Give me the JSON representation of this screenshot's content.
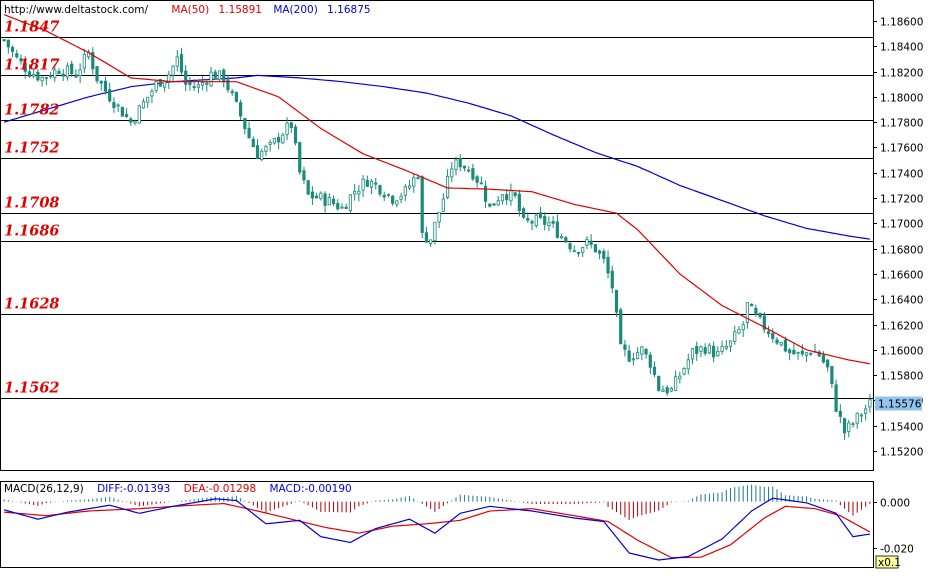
{
  "header": {
    "url": "http://www.deltastock.com/",
    "ma50_label": "MA(50)",
    "ma50_value": "1.15891",
    "ma200_label": "MA(200)",
    "ma200_value": "1.16875"
  },
  "colors": {
    "ma50": "#e00000",
    "ma200": "#0000e0",
    "candle": "#1a8a7a",
    "level_text": "#e00000",
    "macd_diff": "#0000e0",
    "macd_dea": "#e00000",
    "hist_pos": "#1f7a8c",
    "hist_neg": "#b00000",
    "price_tag": "#8fc4ef"
  },
  "price_tag": "1.15576",
  "chart_data": [
    {
      "type": "candlestick",
      "title": "",
      "y_ticks": [
        "1.18600",
        "1.18400",
        "1.18200",
        "1.18000",
        "1.17800",
        "1.17600",
        "1.17400",
        "1.17200",
        "1.17000",
        "1.16800",
        "1.16600",
        "1.16400",
        "1.16200",
        "1.16000",
        "1.15800",
        "1.15600",
        "1.15400",
        "1.15200"
      ],
      "ylim": [
        1.1505,
        1.1875
      ],
      "levels": [
        {
          "label": "1.1847",
          "value": 1.1847
        },
        {
          "label": "1.1817",
          "value": 1.1817
        },
        {
          "label": "1.1782",
          "value": 1.1782
        },
        {
          "label": "1.1752",
          "value": 1.1752
        },
        {
          "label": "1.1708",
          "value": 1.1708
        },
        {
          "label": "1.1686",
          "value": 1.1686
        },
        {
          "label": "1.1628",
          "value": 1.1628
        },
        {
          "label": "1.1562",
          "value": 1.1562
        }
      ],
      "last_price": 1.15576,
      "close_path": [
        [
          0,
          1.1845
        ],
        [
          3,
          1.183
        ],
        [
          6,
          1.182
        ],
        [
          9,
          1.1815
        ],
        [
          13,
          1.1822
        ],
        [
          17,
          1.1818
        ],
        [
          20,
          1.1835
        ],
        [
          22,
          1.1815
        ],
        [
          24,
          1.1805
        ],
        [
          27,
          1.1792
        ],
        [
          30,
          1.178
        ],
        [
          33,
          1.1795
        ],
        [
          36,
          1.181
        ],
        [
          39,
          1.1818
        ],
        [
          41,
          1.183
        ],
        [
          43,
          1.181
        ],
        [
          46,
          1.1808
        ],
        [
          49,
          1.1818
        ],
        [
          52,
          1.1815
        ],
        [
          54,
          1.18
        ],
        [
          56,
          1.1785
        ],
        [
          58,
          1.1768
        ],
        [
          60,
          1.1755
        ],
        [
          63,
          1.176
        ],
        [
          66,
          1.1772
        ],
        [
          68,
          1.1778
        ],
        [
          70,
          1.174
        ],
        [
          72,
          1.1722
        ],
        [
          75,
          1.172
        ],
        [
          78,
          1.1716
        ],
        [
          80,
          1.1712
        ],
        [
          83,
          1.1726
        ],
        [
          86,
          1.1734
        ],
        [
          89,
          1.1728
        ],
        [
          92,
          1.172
        ],
        [
          95,
          1.1725
        ],
        [
          98,
          1.174
        ],
        [
          99,
          1.169
        ],
        [
          101,
          1.1688
        ],
        [
          104,
          1.172
        ],
        [
          106,
          1.1745
        ],
        [
          108,
          1.1748
        ],
        [
          111,
          1.174
        ],
        [
          113,
          1.173
        ],
        [
          115,
          1.1712
        ],
        [
          118,
          1.1725
        ],
        [
          121,
          1.172
        ],
        [
          123,
          1.17
        ],
        [
          126,
          1.1702
        ],
        [
          129,
          1.17
        ],
        [
          132,
          1.169
        ],
        [
          135,
          1.168
        ],
        [
          138,
          1.1684
        ],
        [
          140,
          1.168
        ],
        [
          142,
          1.167
        ],
        [
          144,
          1.165
        ],
        [
          145,
          1.1625
        ],
        [
          146,
          1.16
        ],
        [
          148,
          1.1595
        ],
        [
          151,
          1.16
        ],
        [
          153,
          1.159
        ],
        [
          155,
          1.157
        ],
        [
          158,
          1.1568
        ],
        [
          160,
          1.158
        ],
        [
          163,
          1.1598
        ],
        [
          166,
          1.1602
        ],
        [
          169,
          1.1596
        ],
        [
          172,
          1.1605
        ],
        [
          175,
          1.162
        ],
        [
          176,
          1.1635
        ],
        [
          178,
          1.1625
        ],
        [
          181,
          1.1615
        ],
        [
          183,
          1.1608
        ],
        [
          186,
          1.1598
        ],
        [
          189,
          1.1595
        ],
        [
          191,
          1.16
        ],
        [
          193,
          1.1596
        ],
        [
          195,
          1.1585
        ],
        [
          197,
          1.1555
        ],
        [
          199,
          1.1535
        ],
        [
          201,
          1.1542
        ],
        [
          203,
          1.155
        ],
        [
          205,
          1.1557
        ]
      ],
      "ma50_path": [
        [
          0,
          1.1865
        ],
        [
          10,
          1.1852
        ],
        [
          20,
          1.1835
        ],
        [
          30,
          1.1815
        ],
        [
          40,
          1.1812
        ],
        [
          55,
          1.1812
        ],
        [
          65,
          1.18
        ],
        [
          75,
          1.1775
        ],
        [
          85,
          1.1755
        ],
        [
          95,
          1.1742
        ],
        [
          105,
          1.1728
        ],
        [
          115,
          1.1727
        ],
        [
          125,
          1.1725
        ],
        [
          135,
          1.1715
        ],
        [
          145,
          1.1708
        ],
        [
          150,
          1.1695
        ],
        [
          160,
          1.166
        ],
        [
          170,
          1.1635
        ],
        [
          180,
          1.1618
        ],
        [
          190,
          1.16
        ],
        [
          200,
          1.1592
        ],
        [
          205,
          1.1589
        ]
      ],
      "ma200_path": [
        [
          0,
          1.178
        ],
        [
          10,
          1.179
        ],
        [
          20,
          1.18
        ],
        [
          30,
          1.1808
        ],
        [
          40,
          1.1812
        ],
        [
          55,
          1.1815
        ],
        [
          60,
          1.1817
        ],
        [
          70,
          1.1815
        ],
        [
          80,
          1.1812
        ],
        [
          90,
          1.1808
        ],
        [
          100,
          1.1803
        ],
        [
          110,
          1.1795
        ],
        [
          120,
          1.1785
        ],
        [
          130,
          1.177
        ],
        [
          140,
          1.1756
        ],
        [
          150,
          1.1745
        ],
        [
          160,
          1.173
        ],
        [
          170,
          1.1718
        ],
        [
          180,
          1.1706
        ],
        [
          190,
          1.1696
        ],
        [
          200,
          1.169
        ],
        [
          205,
          1.16875
        ]
      ]
    },
    {
      "type": "macd",
      "title": "MACD(26,12,9)",
      "params": "26,12,9",
      "diff_label": "DIFF",
      "diff_value": "-0.01393",
      "dea_label": "DEA",
      "dea_value": "-0.01298",
      "macd_label": "MACD",
      "macd_value": "-0.00190",
      "y_ticks": [
        "0.000",
        "-0.020"
      ],
      "ylim": [
        -0.028,
        0.008
      ],
      "scale_badge": "x0.1",
      "diff_path": [
        [
          0,
          -0.0035
        ],
        [
          8,
          -0.0075
        ],
        [
          15,
          -0.0045
        ],
        [
          25,
          -0.0015
        ],
        [
          32,
          -0.005
        ],
        [
          40,
          -0.002
        ],
        [
          50,
          0.0012
        ],
        [
          55,
          0.0005
        ],
        [
          62,
          -0.0095
        ],
        [
          70,
          -0.008
        ],
        [
          75,
          -0.015
        ],
        [
          82,
          -0.0175
        ],
        [
          88,
          -0.0115
        ],
        [
          96,
          -0.0075
        ],
        [
          102,
          -0.0135
        ],
        [
          108,
          -0.005
        ],
        [
          115,
          -0.002
        ],
        [
          125,
          -0.004
        ],
        [
          135,
          -0.007
        ],
        [
          142,
          -0.0085
        ],
        [
          148,
          -0.022
        ],
        [
          155,
          -0.025
        ],
        [
          162,
          -0.0235
        ],
        [
          170,
          -0.016
        ],
        [
          177,
          -0.004
        ],
        [
          182,
          0.0015
        ],
        [
          190,
          -0.0005
        ],
        [
          197,
          -0.005
        ],
        [
          201,
          -0.015
        ],
        [
          205,
          -0.0139
        ]
      ],
      "dea_path": [
        [
          0,
          -0.0045
        ],
        [
          10,
          -0.006
        ],
        [
          20,
          -0.004
        ],
        [
          32,
          -0.003
        ],
        [
          42,
          -0.0018
        ],
        [
          52,
          -0.0008
        ],
        [
          60,
          -0.004
        ],
        [
          68,
          -0.0075
        ],
        [
          76,
          -0.011
        ],
        [
          84,
          -0.0135
        ],
        [
          92,
          -0.0105
        ],
        [
          100,
          -0.0095
        ],
        [
          108,
          -0.008
        ],
        [
          115,
          -0.004
        ],
        [
          125,
          -0.003
        ],
        [
          135,
          -0.006
        ],
        [
          143,
          -0.0085
        ],
        [
          150,
          -0.0165
        ],
        [
          158,
          -0.024
        ],
        [
          165,
          -0.0238
        ],
        [
          172,
          -0.0185
        ],
        [
          180,
          -0.007
        ],
        [
          185,
          -0.002
        ],
        [
          192,
          -0.003
        ],
        [
          198,
          -0.006
        ],
        [
          205,
          -0.013
        ]
      ]
    }
  ]
}
